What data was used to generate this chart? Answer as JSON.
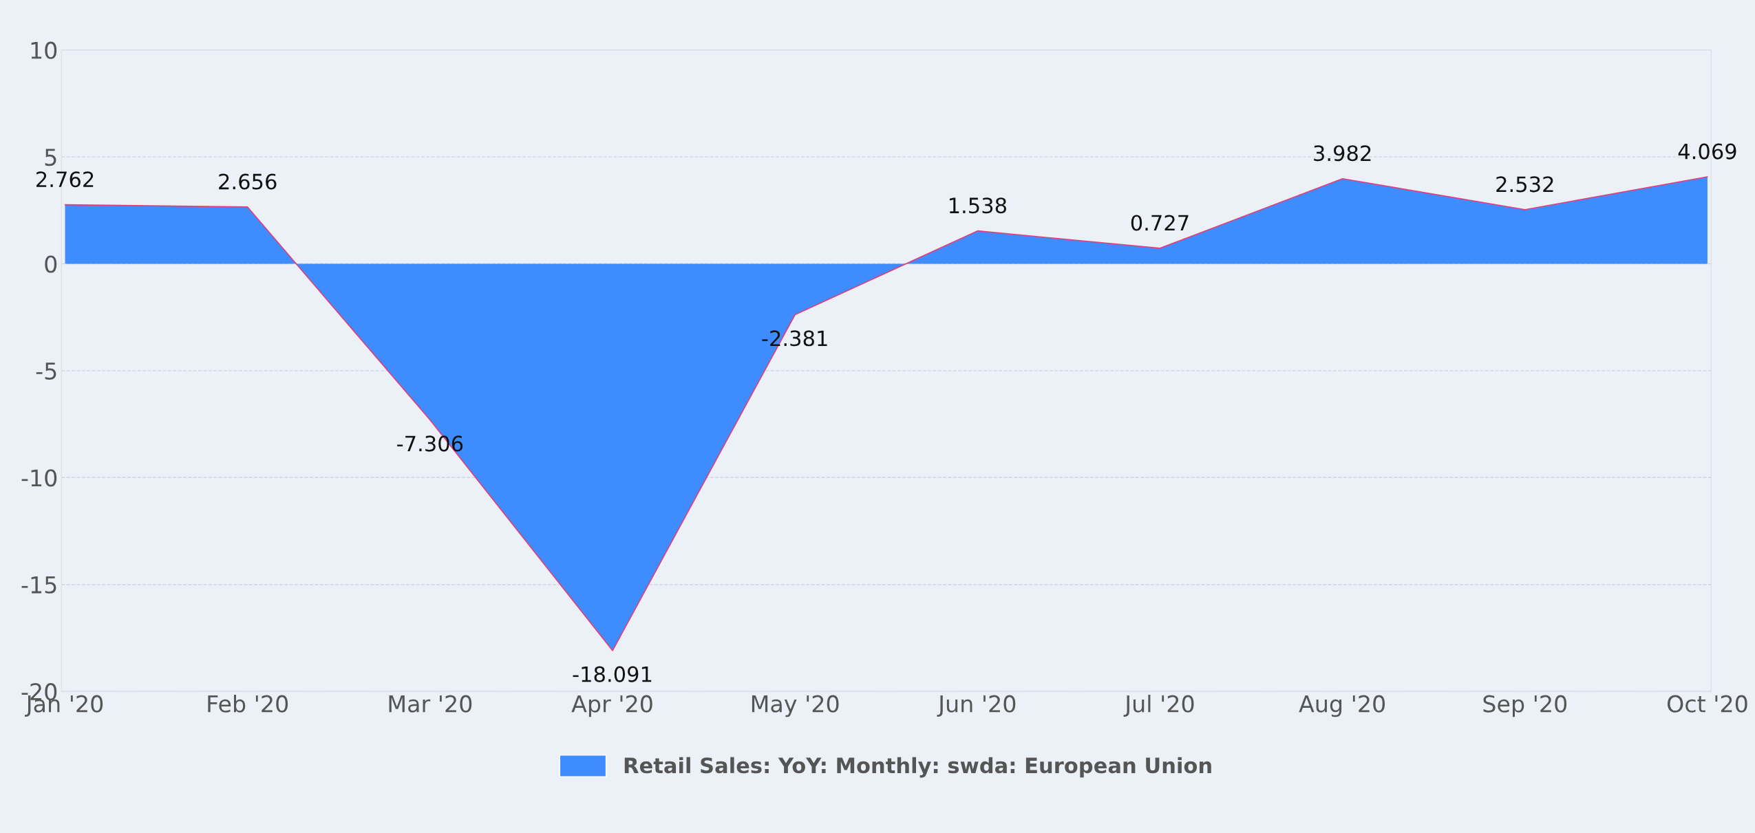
{
  "chart_data": {
    "type": "area",
    "categories": [
      "Jan '20",
      "Feb '20",
      "Mar '20",
      "Apr '20",
      "May '20",
      "Jun '20",
      "Jul '20",
      "Aug '20",
      "Sep '20",
      "Oct '20"
    ],
    "series": [
      {
        "name": "Retail Sales: YoY: Monthly: swda: European Union",
        "color": "#3f8cff",
        "values": [
          2.762,
          2.656,
          -7.306,
          -18.091,
          -2.381,
          1.538,
          0.727,
          3.982,
          2.532,
          4.069
        ]
      }
    ],
    "ylim": [
      -20,
      10
    ],
    "yticks": [
      -20,
      -15,
      -10,
      -5,
      0,
      5,
      10
    ],
    "grid": "y",
    "legend": "bottom",
    "data_labels": true
  }
}
